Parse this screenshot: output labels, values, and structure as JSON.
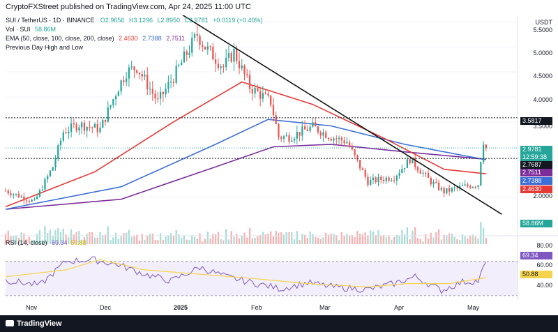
{
  "header": {
    "publisher": "CryptoFXStreet published on TradingView.com, Apr 24, 2025 11:00 UTC"
  },
  "legend": {
    "symbol": "SUI / TetherUS · 1D · BINANCE",
    "open": "O2.9656",
    "high": "H3.1296",
    "low": "L2.8950",
    "close": "C2.9781",
    "change": "+0.0119 (+0.40%)",
    "volume_label": "Vol · SUI",
    "volume_value": "58.86M",
    "ema_label": "EMA (50, close, 100, close, 200, close)",
    "ema_values": [
      "2.4630",
      "2.7388",
      "2.7511"
    ],
    "pdhl": "Previous Day High and Low",
    "rsi_label": "RSI (14, close)",
    "rsi_values": [
      "69.34",
      "50.88"
    ]
  },
  "axis": {
    "currency": "USDT",
    "price_ticks": [
      "5.5000",
      "5.0000",
      "4.5000",
      "4.0000",
      "3.5000",
      "2.0000"
    ],
    "rsi_ticks": [
      "80.00",
      "60.00",
      "40.00"
    ],
    "months": [
      "Nov",
      "Dec",
      "2025",
      "Feb",
      "Mar",
      "Apr",
      "May"
    ]
  },
  "badges": {
    "price": "2.9781",
    "countdown": "12:59:38",
    "pdh": "3.5817",
    "pdl": "2.7687",
    "ema200": "2.7511",
    "ema100": "2.7388",
    "ema50": "2.4630",
    "volume": "58.86M",
    "rsi": "69.34",
    "rsi_ma": "50.88"
  },
  "colors": {
    "up": "#26a69a",
    "down": "#ef5350",
    "ema50": "#e53935",
    "ema100": "#3c6ed8",
    "ema200": "#7b2d9c",
    "rsi": "#7e57c2",
    "rsi_ma": "#f5d44c",
    "trendline": "#111111"
  },
  "footer": {
    "brand": "TradingView"
  },
  "chart_data": {
    "type": "candlestick",
    "symbol": "SUI/USDT",
    "timeframe": "1D",
    "x_range": [
      "2024-10-23",
      "2025-05-06"
    ],
    "y_range": [
      1.75,
      5.55
    ],
    "levels": {
      "previous_day_high": 3.5817,
      "previous_day_low": 2.7687,
      "last": 2.9781
    },
    "trendline": [
      [
        "2024-12-27",
        5.72
      ],
      [
        "2025-04-30",
        1.65
      ]
    ],
    "keypoints": [
      [
        "2024-10-23",
        2.12
      ],
      [
        "2024-11-03",
        1.9
      ],
      [
        "2024-11-10",
        2.6
      ],
      [
        "2024-11-14",
        3.3
      ],
      [
        "2024-11-20",
        3.45
      ],
      [
        "2024-11-28",
        3.35
      ],
      [
        "2024-12-05",
        4.2
      ],
      [
        "2024-12-08",
        4.5
      ],
      [
        "2024-12-12",
        4.6
      ],
      [
        "2024-12-20",
        3.9
      ],
      [
        "2024-12-26",
        4.4
      ],
      [
        "2025-01-04",
        5.25
      ],
      [
        "2025-01-07",
        5.0
      ],
      [
        "2025-01-14",
        4.6
      ],
      [
        "2025-01-18",
        4.9
      ],
      [
        "2025-01-24",
        4.2
      ],
      [
        "2025-02-01",
        3.9
      ],
      [
        "2025-02-04",
        3.2
      ],
      [
        "2025-02-08",
        3.2
      ],
      [
        "2025-02-17",
        3.4
      ],
      [
        "2025-02-24",
        3.2
      ],
      [
        "2025-03-02",
        3.1
      ],
      [
        "2025-03-10",
        2.3
      ],
      [
        "2025-03-20",
        2.4
      ],
      [
        "2025-03-26",
        2.75
      ],
      [
        "2025-04-03",
        2.3
      ],
      [
        "2025-04-08",
        2.1
      ],
      [
        "2025-04-15",
        2.2
      ],
      [
        "2025-04-21",
        2.25
      ],
      [
        "2025-04-22",
        2.75
      ],
      [
        "2025-04-23",
        3.12
      ],
      [
        "2025-04-24",
        2.98
      ]
    ],
    "ema50": [
      [
        "2024-10-23",
        1.8
      ],
      [
        "2024-11-26",
        2.5
      ],
      [
        "2024-12-26",
        3.5
      ],
      [
        "2025-01-21",
        4.3
      ],
      [
        "2025-02-17",
        3.85
      ],
      [
        "2025-03-17",
        3.15
      ],
      [
        "2025-04-08",
        2.55
      ],
      [
        "2025-04-24",
        2.46
      ]
    ],
    "ema100": [
      [
        "2024-10-23",
        1.75
      ],
      [
        "2024-12-06",
        2.2
      ],
      [
        "2025-01-11",
        3.05
      ],
      [
        "2025-01-31",
        3.55
      ],
      [
        "2025-02-24",
        3.42
      ],
      [
        "2025-03-24",
        3.05
      ],
      [
        "2025-04-24",
        2.74
      ]
    ],
    "ema200": [
      [
        "2024-10-23",
        1.75
      ],
      [
        "2024-12-06",
        1.95
      ],
      [
        "2025-01-11",
        2.6
      ],
      [
        "2025-02-02",
        3.0
      ],
      [
        "2025-02-24",
        3.05
      ],
      [
        "2025-03-24",
        2.9
      ],
      [
        "2025-04-24",
        2.75
      ]
    ],
    "rsi_range": [
      25,
      90
    ],
    "rsi_levels": [
      70,
      30
    ],
    "rsi": [
      [
        "2024-10-23",
        48
      ],
      [
        "2024-11-05",
        42
      ],
      [
        "2024-11-15",
        70
      ],
      [
        "2024-11-25",
        72
      ],
      [
        "2024-12-05",
        66
      ],
      [
        "2024-12-15",
        55
      ],
      [
        "2024-12-25",
        47
      ],
      [
        "2025-01-05",
        63
      ],
      [
        "2025-01-15",
        52
      ],
      [
        "2025-01-25",
        45
      ],
      [
        "2025-02-05",
        38
      ],
      [
        "2025-02-15",
        45
      ],
      [
        "2025-02-25",
        40
      ],
      [
        "2025-03-10",
        37
      ],
      [
        "2025-03-20",
        44
      ],
      [
        "2025-03-28",
        52
      ],
      [
        "2025-04-07",
        36
      ],
      [
        "2025-04-15",
        46
      ],
      [
        "2025-04-21",
        47
      ],
      [
        "2025-04-24",
        69.34
      ]
    ],
    "rsi_ma": [
      [
        "2024-10-23",
        52
      ],
      [
        "2024-11-15",
        60
      ],
      [
        "2024-11-28",
        72
      ],
      [
        "2024-12-15",
        60
      ],
      [
        "2025-01-05",
        55
      ],
      [
        "2025-01-25",
        50
      ],
      [
        "2025-02-15",
        44
      ],
      [
        "2025-03-10",
        40
      ],
      [
        "2025-03-25",
        44
      ],
      [
        "2025-04-10",
        44
      ],
      [
        "2025-04-24",
        50.88
      ]
    ]
  }
}
